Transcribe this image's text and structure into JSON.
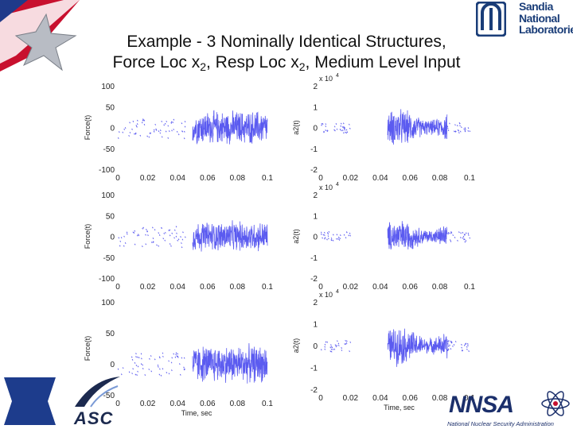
{
  "slide": {
    "title_line1": "Example - 3 Nominally Identical Structures,",
    "title_line2_a": "Force Loc x",
    "title_line2_sub1": "2",
    "title_line2_b": ", Resp Loc x",
    "title_line2_sub2": "2",
    "title_line2_c": ", Medium Level Input"
  },
  "logos": {
    "sandia_line1": "Sandia",
    "sandia_line2": "National",
    "sandia_line3": "Laboratories",
    "asc": "ASC",
    "nnsa_big": "NNSA",
    "nnsa_small": "National Nuclear Security Administration"
  },
  "colors": {
    "signal": "#5b5bf0",
    "axis": "#222222",
    "sandia_blue": "#1a3d78",
    "nnsa_blue": "#1b2f6b"
  },
  "chart_data": [
    {
      "type": "line",
      "panel": "force-1",
      "ylabel": "Force(t)",
      "xlabel": "",
      "xlim": [
        0,
        0.1
      ],
      "ylim": [
        -100,
        100
      ],
      "xticks": [
        "0",
        "0.02",
        "0.04",
        "0.06",
        "0.08",
        "0.1"
      ],
      "yticks": [
        "100",
        "50",
        "0",
        "-50",
        "-100"
      ],
      "series": [
        {
          "values_summary": {
            "pre_x": [
              0,
              0.045
            ],
            "pre_amp": 25,
            "main_x": [
              0.05,
              0.1
            ],
            "main_amp": 45
          }
        }
      ]
    },
    {
      "type": "line",
      "panel": "accel-1",
      "ylabel": "a2(t)",
      "xlabel": "",
      "xlim": [
        0,
        0.1
      ],
      "ylim": [
        -20000,
        20000
      ],
      "multiplier": "x 10^4",
      "xticks": [
        "0",
        "0.02",
        "0.04",
        "0.06",
        "0.08",
        "0.1"
      ],
      "yticks": [
        "2",
        "1",
        "0",
        "-1",
        "-2"
      ],
      "series": [
        {
          "values_summary": {
            "main_x": [
              0.045,
              0.085
            ],
            "main_amp": 10000,
            "tail_amp": 2500
          }
        }
      ]
    },
    {
      "type": "line",
      "panel": "force-2",
      "ylabel": "Force(t)",
      "xlabel": "",
      "xlim": [
        0,
        0.1
      ],
      "ylim": [
        -100,
        100
      ],
      "xticks": [
        "0",
        "0.02",
        "0.04",
        "0.06",
        "0.08",
        "0.1"
      ],
      "yticks": [
        "100",
        "50",
        "0",
        "-50",
        "-100"
      ],
      "series": [
        {
          "values_summary": {
            "pre_x": [
              0,
              0.045
            ],
            "pre_amp": 25,
            "main_x": [
              0.05,
              0.1
            ],
            "main_amp": 40
          }
        }
      ]
    },
    {
      "type": "line",
      "panel": "accel-2",
      "ylabel": "a2(t)",
      "xlabel": "",
      "xlim": [
        0,
        0.1
      ],
      "ylim": [
        -20000,
        20000
      ],
      "multiplier": "x 10^4",
      "xticks": [
        "0",
        "0.02",
        "0.04",
        "0.06",
        "0.08",
        "0.1"
      ],
      "yticks": [
        "2",
        "1",
        "0",
        "-1",
        "-2"
      ],
      "series": [
        {
          "values_summary": {
            "main_x": [
              0.045,
              0.085
            ],
            "main_amp": 9000,
            "tail_amp": 2500
          }
        }
      ]
    },
    {
      "type": "line",
      "panel": "force-3",
      "ylabel": "Force(t)",
      "xlabel": "Time, sec",
      "xlim": [
        0,
        0.1
      ],
      "ylim": [
        0,
        100
      ],
      "xticks": [
        "0",
        "0.02",
        "0.04",
        "0.06",
        "0.08",
        "0.1"
      ],
      "yticks": [
        "100",
        "50",
        "0",
        "-50"
      ],
      "series": [
        {
          "values_summary": {
            "pre_x": [
              0,
              0.045
            ],
            "pre_amp": 25,
            "main_x": [
              0.05,
              0.1
            ],
            "main_amp": 45
          }
        }
      ]
    },
    {
      "type": "line",
      "panel": "accel-3",
      "ylabel": "a2(t)",
      "xlabel": "Time, sec",
      "xlim": [
        0,
        0.1
      ],
      "ylim": [
        -2,
        2
      ],
      "multiplier": "x 10^4",
      "xticks": [
        "0",
        "0.02",
        "0.04",
        "0.06",
        "0.08",
        "0.1"
      ],
      "yticks": [
        "2",
        "1",
        "0",
        "-1",
        "-2"
      ],
      "series": [
        {
          "values_summary": {
            "main_x": [
              0.045,
              0.085
            ],
            "main_amp": 1.0,
            "tail_amp": 0.25
          }
        }
      ]
    }
  ]
}
